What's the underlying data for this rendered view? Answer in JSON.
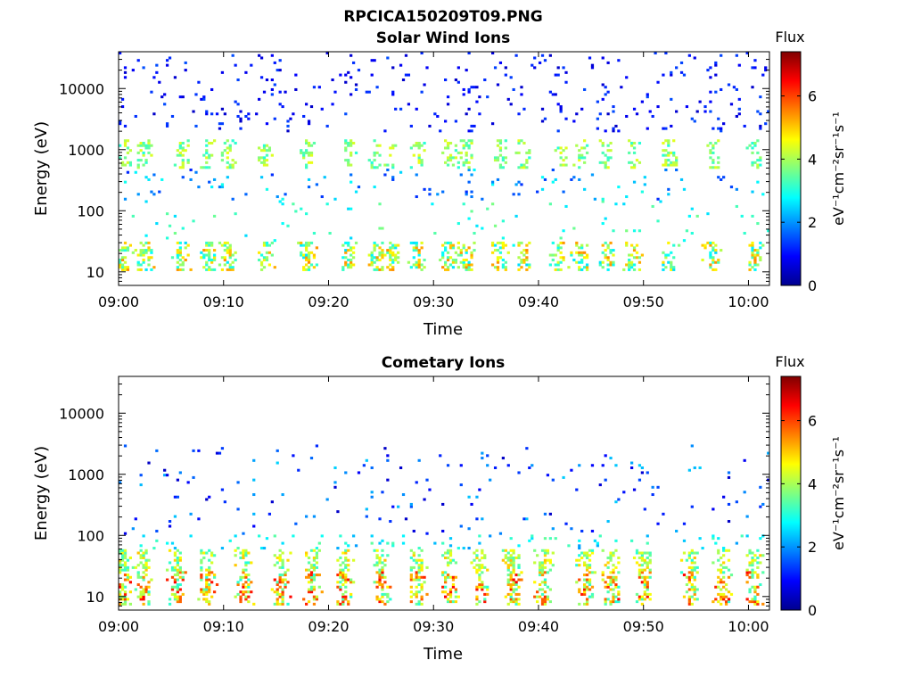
{
  "figure": {
    "title": "RPCICA150209T09.PNG"
  },
  "chart_data": [
    {
      "type": "heatmap",
      "title": "Solar Wind Ions",
      "xlabel": "Time",
      "ylabel": "Energy (eV)",
      "x_ticks": [
        "09:00",
        "09:10",
        "09:20",
        "09:30",
        "09:40",
        "09:50",
        "10:00"
      ],
      "x_range_minutes": [
        0,
        62
      ],
      "y_scale": "log",
      "y_ticks": [
        {
          "value": 10,
          "label": "10"
        },
        {
          "value": 100,
          "label": "100"
        },
        {
          "value": 1000,
          "label": "1000"
        },
        {
          "value": 10000,
          "label": "10000"
        }
      ],
      "y_range": [
        6,
        40000
      ],
      "colorbar": {
        "title": "Flux",
        "label": "eV⁻¹cm⁻²sr⁻¹s⁻¹",
        "ticks": [
          0,
          2,
          4,
          6
        ],
        "range": [
          0,
          7.4
        ],
        "colormap": "jet"
      },
      "features": {
        "low_band_energy_eV": [
          10,
          30
        ],
        "low_band_flux_range": [
          2.5,
          5.5
        ],
        "peak_band_energy_eV": [
          500,
          1500
        ],
        "peak_band_flux_range": [
          3,
          4.5
        ],
        "high_sparse_energy_eV": [
          2000,
          40000
        ],
        "high_sparse_flux_range": [
          0.5,
          1.5
        ],
        "pulse_times_minutes": [
          0.5,
          2.5,
          6,
          8.5,
          10.5,
          14,
          18,
          22,
          24.5,
          26,
          28.5,
          31.5,
          33,
          36.5,
          38.5,
          42,
          44,
          46.5,
          49,
          52.5,
          56.5,
          60.5
        ]
      },
      "grid": false
    },
    {
      "type": "heatmap",
      "title": "Cometary Ions",
      "xlabel": "Time",
      "ylabel": "Energy (eV)",
      "x_ticks": [
        "09:00",
        "09:10",
        "09:20",
        "09:30",
        "09:40",
        "09:50",
        "10:00"
      ],
      "x_range_minutes": [
        0,
        62
      ],
      "y_scale": "log",
      "y_ticks": [
        {
          "value": 10,
          "label": "10"
        },
        {
          "value": 100,
          "label": "100"
        },
        {
          "value": 1000,
          "label": "1000"
        },
        {
          "value": 10000,
          "label": "10000"
        }
      ],
      "y_range": [
        6,
        40000
      ],
      "colorbar": {
        "title": "Flux",
        "label": "eV⁻¹cm⁻²sr⁻¹s⁻¹",
        "ticks": [
          0,
          2,
          4,
          6
        ],
        "range": [
          0,
          7.4
        ],
        "colormap": "jet"
      },
      "features": {
        "low_band_energy_eV": [
          7,
          60
        ],
        "low_band_flux_range": [
          3,
          6.5
        ],
        "sparse_upper_energy_eV": [
          100,
          3000
        ],
        "sparse_upper_flux_range": [
          0.5,
          2.5
        ],
        "pulse_times_minutes": [
          0.5,
          2.5,
          5.5,
          8.5,
          12,
          15.5,
          18.5,
          21.5,
          25,
          28.5,
          31.5,
          34.5,
          37.5,
          40.5,
          44.5,
          47,
          50,
          54.5,
          57.5,
          60.5
        ]
      },
      "grid": false
    }
  ]
}
